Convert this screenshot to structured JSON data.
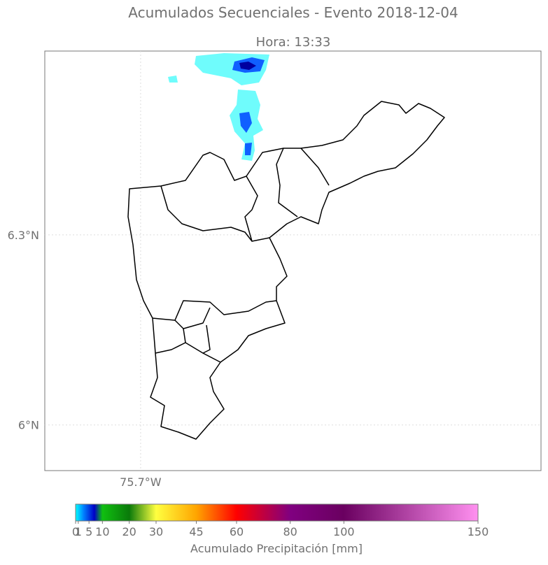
{
  "title": "Acumulados Secuenciales - Evento 2018-12-04",
  "subtitle": "Hora: 13:33",
  "map": {
    "xlim": [
      -75.851,
      -75.069
    ],
    "ylim": [
      5.928,
      6.59
    ],
    "xticks": [
      {
        "value": -75.7,
        "label": "75.7°W"
      }
    ],
    "yticks": [
      {
        "value": 6.3,
        "label": "6.3°N"
      },
      {
        "value": 6,
        "label": "6°N"
      }
    ]
  },
  "colorbar": {
    "label": "Acumulado Precipitación [mm]",
    "lim": [
      0,
      150
    ],
    "ticks": [
      0,
      1,
      5,
      10,
      20,
      30,
      45,
      60,
      80,
      100,
      150
    ],
    "stops": [
      {
        "value": 0,
        "color": "#00ffff"
      },
      {
        "value": 3,
        "color": "#0080ff"
      },
      {
        "value": 7,
        "color": "#0000c8"
      },
      {
        "value": 10,
        "color": "#10c010"
      },
      {
        "value": 20,
        "color": "#0a7a0a"
      },
      {
        "value": 30,
        "color": "#ffff40"
      },
      {
        "value": 45,
        "color": "#ffa500"
      },
      {
        "value": 60,
        "color": "#ff0000"
      },
      {
        "value": 80,
        "color": "#800080"
      },
      {
        "value": 100,
        "color": "#6a0060"
      },
      {
        "value": 150,
        "color": "#ff90f0"
      }
    ]
  }
}
